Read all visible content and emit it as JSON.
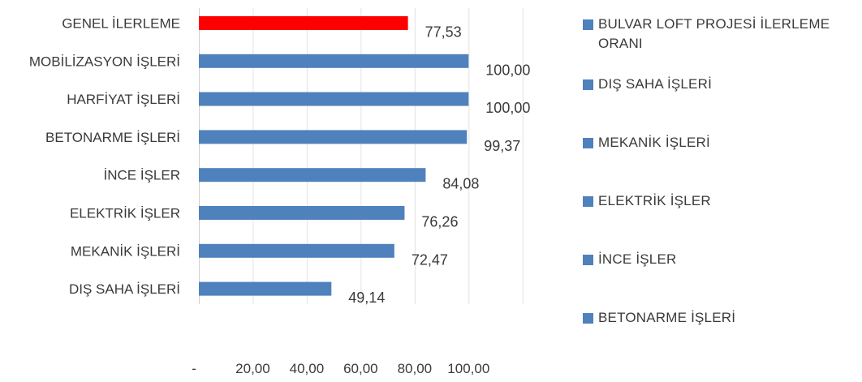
{
  "chart_data": {
    "type": "bar",
    "orientation": "horizontal",
    "categories": [
      "GENEL İLERLEME",
      "MOBİLİZASYON İŞLERİ",
      "HARFİYAT İŞLERİ",
      "BETONARME İŞLERİ",
      "İNCE İŞLER",
      "ELEKTRİK İŞLER",
      "MEKANİK İŞLERİ",
      "DIŞ SAHA İŞLERİ"
    ],
    "values": [
      77.53,
      100.0,
      100.0,
      99.37,
      84.08,
      76.26,
      72.47,
      49.14
    ],
    "value_labels": [
      "77,53",
      "100,00",
      "100,00",
      "99,37",
      "84,08",
      "76,26",
      "72,47",
      "49,14"
    ],
    "bar_colors": [
      "#ff0000",
      "#4f81bd",
      "#4f81bd",
      "#4f81bd",
      "#4f81bd",
      "#4f81bd",
      "#4f81bd",
      "#4f81bd"
    ],
    "xlim": [
      0,
      120
    ],
    "xticks": [
      0,
      20,
      40,
      60,
      80,
      100
    ],
    "xtick_labels": [
      "-",
      "20,00",
      "40,00",
      "60,00",
      "80,00",
      "100,00"
    ],
    "grid": true,
    "legend_position": "right",
    "legend": [
      "BULVAR LOFT PROJESİ İLERLEME ORANI",
      "DIŞ SAHA İŞLERİ",
      "MEKANİK İŞLERİ",
      "ELEKTRİK İŞLER",
      "İNCE İŞLER",
      "BETONARME İŞLERİ"
    ],
    "legend_color": "#4f81bd"
  }
}
